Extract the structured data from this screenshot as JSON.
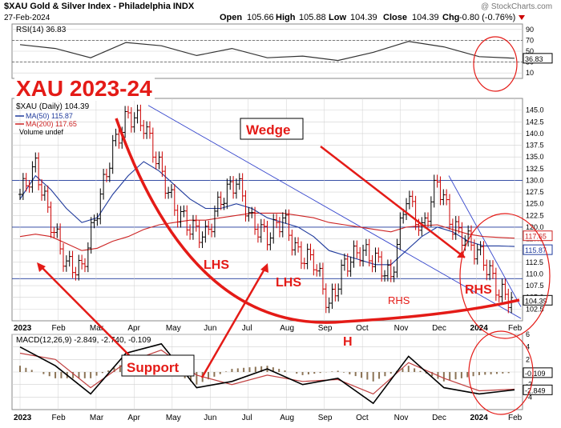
{
  "header": {
    "symbol_title": "$XAU Gold & Silver Index - Philadelphia INDX",
    "date": "27-Feb-2024",
    "watermark": "@ StockCharts.com",
    "open_label": "Open",
    "open": "105.66",
    "high_label": "High",
    "high": "105.88",
    "low_label": "Low",
    "low": "104.39",
    "close_label": "Close",
    "close": "104.39",
    "chg_label": "Chg",
    "chg": "-0.80 (-0.76%)"
  },
  "annotations": {
    "big_title": "XAU 2023-24",
    "wedge": "Wedge",
    "lhs1": "LHS",
    "lhs2": "LHS",
    "rhs_small": "RHS",
    "rhs_big": "RHS",
    "head": "H",
    "support": "Support"
  },
  "colors": {
    "price_up": "#000000",
    "price_down": "#cc0000",
    "ma50": "#1f3a9c",
    "ma200": "#cc2222",
    "annotation_red": "#e41b17",
    "rsi_line": "#333333",
    "macd_line": "#000000",
    "signal_line": "#c04040",
    "histogram": "#8b7355",
    "grid": "#d0d0d0"
  },
  "chart_data": [
    {
      "type": "line",
      "panel": "rsi",
      "legend": "RSI(14) 36.83",
      "value_badge": "36.83",
      "ylim": [
        0,
        100
      ],
      "yticks": [
        "90",
        "70",
        "50",
        "30",
        "10"
      ],
      "levels": [
        70,
        30
      ],
      "x": [
        "Jan-23",
        "Feb",
        "Mar",
        "Apr",
        "May",
        "Jun",
        "Jul",
        "Aug",
        "Sep",
        "Oct",
        "Nov",
        "Dec",
        "Jan-24",
        "Feb",
        "Feb-27"
      ],
      "values": [
        62,
        55,
        38,
        66,
        60,
        42,
        55,
        38,
        41,
        33,
        48,
        68,
        58,
        40,
        37
      ]
    },
    {
      "type": "candlestick",
      "panel": "price",
      "legend": [
        "$XAU (Daily) 104.39",
        "MA(50) 115.87",
        "MA(200) 117.65",
        "Volume undef"
      ],
      "ylim": [
        100,
        147.5
      ],
      "yticks": [
        "145.0",
        "142.5",
        "140.0",
        "137.5",
        "135.0",
        "132.5",
        "130.0",
        "127.5",
        "125.0",
        "122.5",
        "120.0",
        "117.5",
        "115.0",
        "112.5",
        "110.0",
        "107.5",
        "105.0",
        "102.5"
      ],
      "badges": [
        "117.65",
        "115.87",
        "104.39"
      ],
      "xlabels": [
        "2023",
        "Feb",
        "Mar",
        "Apr",
        "May",
        "Jun",
        "Jul",
        "Aug",
        "Sep",
        "Oct",
        "Nov",
        "Dec",
        "2024",
        "Feb"
      ],
      "x": [
        "2023-01-03",
        "2023-01-20",
        "2023-02-10",
        "2023-03-01",
        "2023-03-10",
        "2023-03-20",
        "2023-04-05",
        "2023-04-14",
        "2023-05-03",
        "2023-05-12",
        "2023-05-25",
        "2023-06-05",
        "2023-06-22",
        "2023-07-14",
        "2023-07-27",
        "2023-08-10",
        "2023-08-22",
        "2023-09-01",
        "2023-09-15",
        "2023-09-29",
        "2023-10-05",
        "2023-10-20",
        "2023-11-01",
        "2023-11-13",
        "2023-11-24",
        "2023-12-04",
        "2023-12-14",
        "2023-12-28",
        "2024-01-10",
        "2024-01-22",
        "2024-02-01",
        "2024-02-13",
        "2024-02-27"
      ],
      "close": [
        127,
        133,
        121,
        112,
        111,
        124,
        137,
        144,
        142,
        133,
        124,
        120,
        118,
        126,
        130,
        121,
        118,
        122,
        114,
        113,
        103,
        112,
        115,
        113,
        109,
        127,
        119,
        130,
        120,
        117,
        113,
        106,
        104.39
      ],
      "ma50": [
        126,
        131,
        128,
        124,
        121,
        122,
        127,
        131,
        134,
        132,
        129,
        126,
        124,
        124,
        125,
        124,
        122,
        121,
        120,
        118,
        115,
        114,
        113,
        112,
        112,
        115,
        118,
        120,
        119,
        117,
        116,
        116,
        115.87
      ],
      "ma200": [
        118,
        118.5,
        118,
        116.5,
        115,
        115.5,
        117,
        118,
        119.5,
        120.5,
        121,
        121.5,
        121.5,
        122,
        122.5,
        123,
        123,
        123,
        122.5,
        122,
        121,
        120.5,
        120,
        119.5,
        119,
        120,
        120.3,
        120.5,
        119.5,
        118.5,
        118,
        117.8,
        117.65
      ],
      "hlines": [
        130,
        120,
        109
      ]
    },
    {
      "type": "line",
      "panel": "macd",
      "legend": "MACD(12,26,9) -2.849, -2.740, -0.109",
      "badges": [
        "-0.109",
        "-2.849"
      ],
      "ylim": [
        -6,
        6
      ],
      "yticks": [
        "6",
        "4",
        "2",
        "0",
        "-2",
        "-4"
      ],
      "xlabels": [
        "2023",
        "Feb",
        "Mar",
        "Apr",
        "May",
        "Jun",
        "Jul",
        "Aug",
        "Sep",
        "Oct",
        "Nov",
        "Dec",
        "2024",
        "Feb"
      ],
      "x": [
        "Jan-23",
        "Feb",
        "Mar",
        "Apr",
        "May",
        "Jun",
        "Jul",
        "Aug",
        "Sep",
        "Oct",
        "Nov",
        "Dec",
        "Jan-24",
        "Feb",
        "Feb-27"
      ],
      "series": [
        {
          "name": "MACD",
          "values": [
            4,
            1,
            -3.5,
            3,
            4.5,
            -2.5,
            -1.5,
            0.5,
            -2,
            -1,
            -5,
            2.5,
            -2.5,
            -3.5,
            -2.849
          ]
        },
        {
          "name": "Signal",
          "values": [
            3,
            2,
            -2.5,
            1.5,
            3.5,
            -0.5,
            -2,
            -0.5,
            -1.5,
            -1.2,
            -3.5,
            1.5,
            -1,
            -3,
            -2.74
          ]
        }
      ]
    }
  ]
}
